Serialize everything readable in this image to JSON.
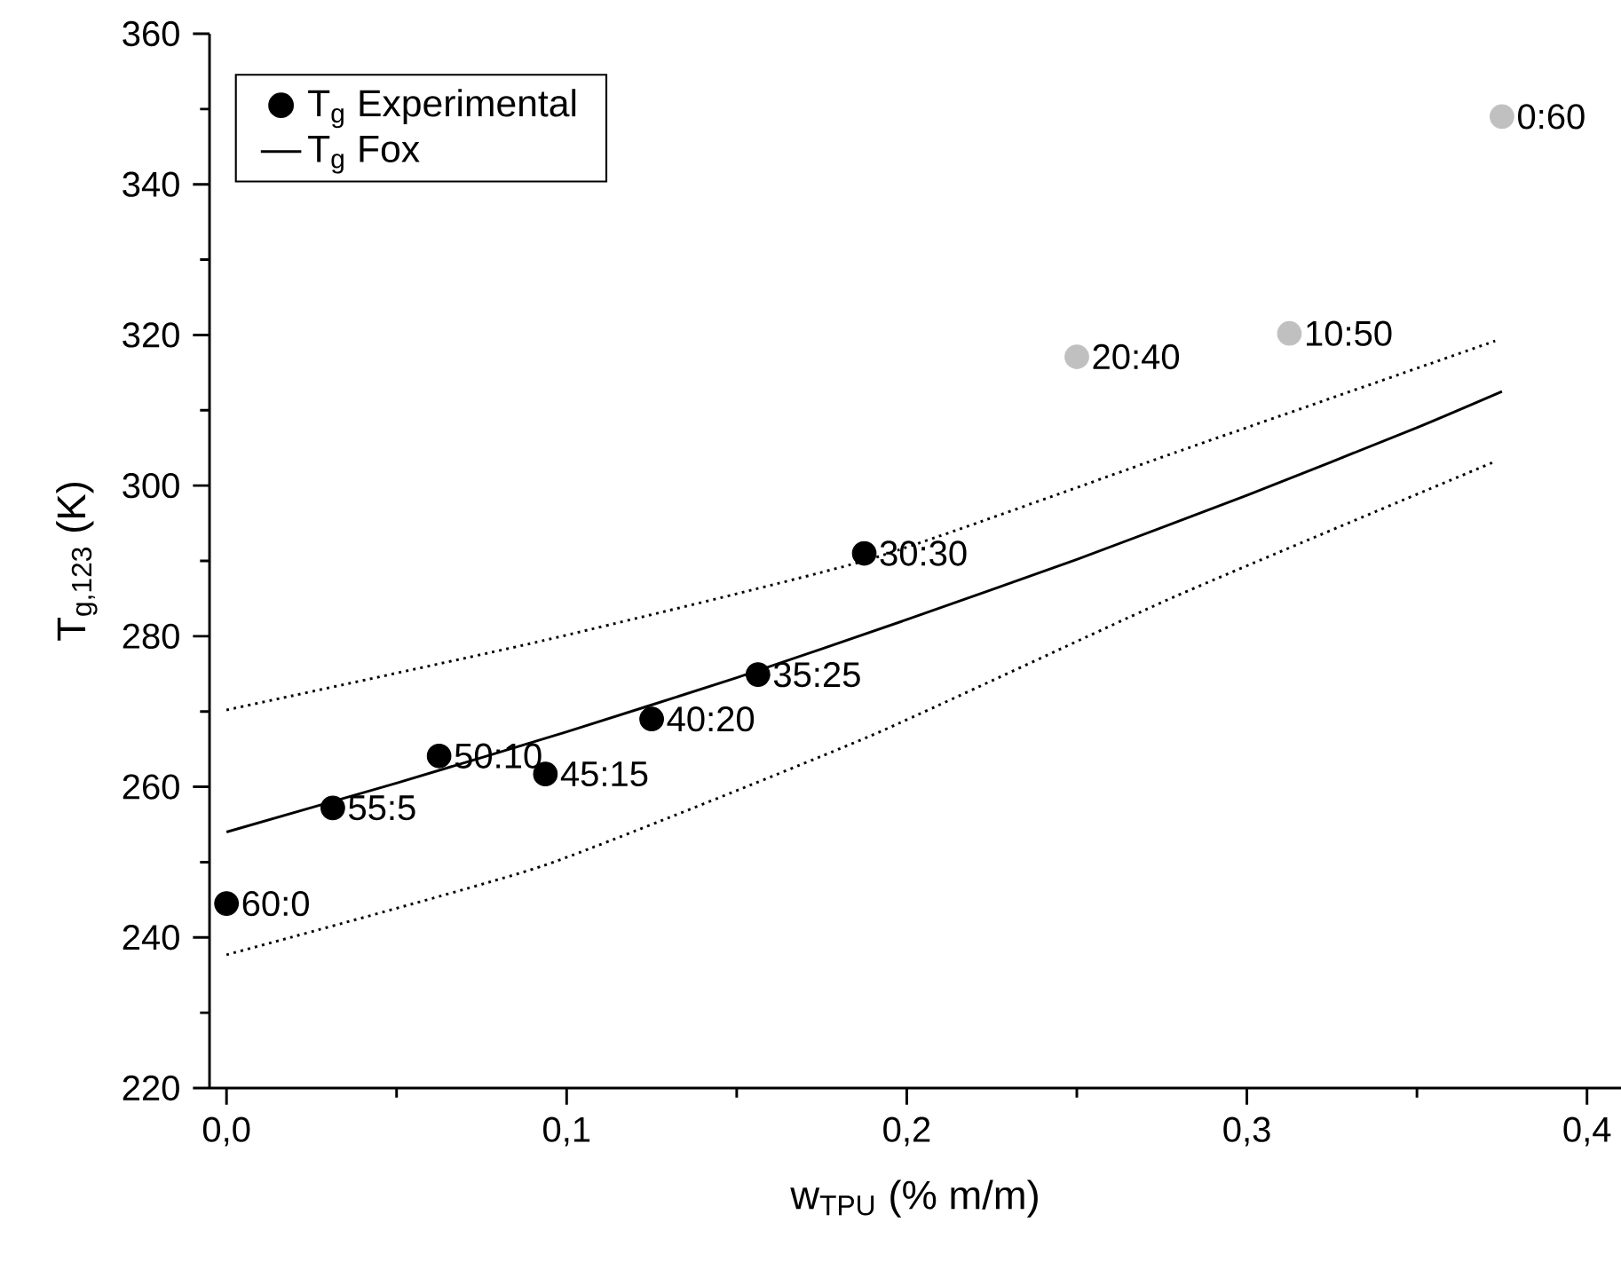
{
  "chart_data": {
    "type": "scatter",
    "xlabel": "w$_{TPU}$ (% m/m)",
    "ylabel": "T$_{g,123}$ (K)",
    "xlim": [
      -0.005,
      0.41
    ],
    "ylim": [
      220,
      360
    ],
    "xticks": [
      {
        "value": 0,
        "label": "0,0"
      },
      {
        "value": 0.1,
        "label": "0,1"
      },
      {
        "value": 0.2,
        "label": "0,2"
      },
      {
        "value": 0.3,
        "label": "0,3"
      },
      {
        "value": 0.4,
        "label": "0,4"
      }
    ],
    "yticks": [
      220,
      240,
      260,
      280,
      300,
      320,
      340,
      360
    ],
    "grid": false,
    "legend": "top left",
    "series": [
      {
        "name": "T$_{g}$ Experimental",
        "type": "scatter",
        "marker": "circle",
        "x": [
          0,
          0.03125,
          0.0625,
          0.09375,
          0.125,
          0.15625,
          0.1875,
          0.25,
          0.3125,
          0.375
        ],
        "values": [
          244.5,
          257.2,
          264.1,
          261.7,
          269.0,
          274.9,
          291.0,
          317.1,
          320.2,
          349.0
        ],
        "colors": [
          "#000000",
          "#000000",
          "#000000",
          "#000000",
          "#000000",
          "#000000",
          "#000000",
          "#c0c0c0",
          "#c0c0c0",
          "#c0c0c0"
        ]
      },
      {
        "name": "T$_{g}$ Fox",
        "type": "line",
        "marker": "none",
        "line_style": "solid",
        "color": "#000000",
        "x": [
          0,
          0.05,
          0.1,
          0.15,
          0.2,
          0.25,
          0.3,
          0.35,
          0.375
        ],
        "values": [
          254.0,
          260.5,
          267.3,
          274.5,
          282.2,
          290.2,
          298.7,
          307.7,
          312.5
        ]
      },
      {
        "type": "line",
        "marker": "none",
        "line_style": "dotted",
        "color": "#000000",
        "x": [
          0,
          0.093,
          0.189,
          0.279,
          0.373
        ],
        "values": [
          270.2,
          279.4,
          290.2,
          304.4,
          319.2
        ]
      },
      {
        "type": "line",
        "marker": "none",
        "line_style": "dotted",
        "color": "#000000",
        "x": [
          0,
          0.093,
          0.189,
          0.279,
          0.373
        ],
        "values": [
          237.7,
          249.5,
          266.7,
          285.3,
          303.2
        ]
      }
    ],
    "annotations": [
      {
        "text": "60:0",
        "x": 0,
        "y": 244.5
      },
      {
        "text": "55:5",
        "x": 0.03125,
        "y": 257.2
      },
      {
        "text": "50:10",
        "x": 0.0625,
        "y": 264.1
      },
      {
        "text": "45:15",
        "x": 0.09375,
        "y": 261.7
      },
      {
        "text": "40:20",
        "x": 0.125,
        "y": 269.0
      },
      {
        "text": "35:25",
        "x": 0.15625,
        "y": 274.9
      },
      {
        "text": "30:30",
        "x": 0.1875,
        "y": 291.0
      },
      {
        "text": "20:40",
        "x": 0.25,
        "y": 317.1
      },
      {
        "text": "10:50",
        "x": 0.3125,
        "y": 320.2
      },
      {
        "text": "0:60",
        "x": 0.375,
        "y": 349.0
      }
    ]
  }
}
